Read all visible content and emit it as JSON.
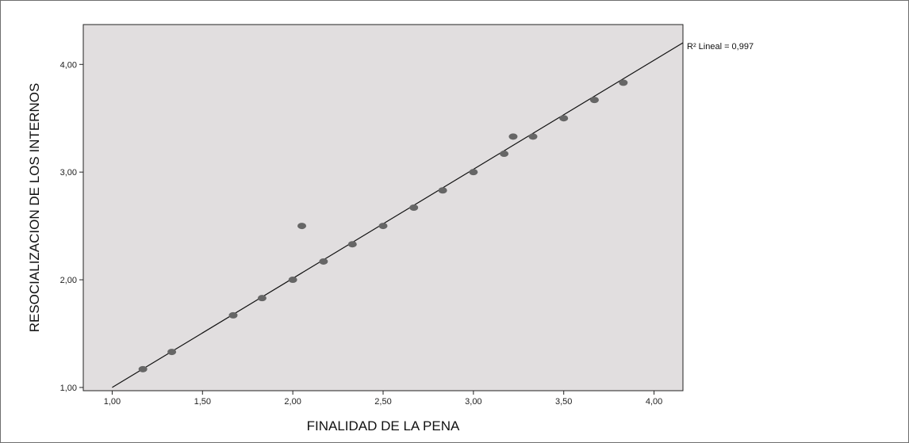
{
  "chart_data": {
    "type": "scatter",
    "xlabel": "FINALIDAD DE LA PENA",
    "ylabel": "RESOCIALIZACION DE LOS INTERNOS",
    "xlim": [
      0.84,
      4.16
    ],
    "ylim": [
      0.97,
      4.37
    ],
    "x_ticks": [
      "1,00",
      "1,50",
      "2,00",
      "2,50",
      "3,00",
      "3,50",
      "4,00"
    ],
    "y_ticks": [
      "1,00",
      "2,00",
      "3,00",
      "4,00"
    ],
    "x_tick_values": [
      1.0,
      1.5,
      2.0,
      2.5,
      3.0,
      3.5,
      4.0
    ],
    "y_tick_values": [
      1.0,
      2.0,
      3.0,
      4.0
    ],
    "points": [
      {
        "x": 1.17,
        "y": 1.17
      },
      {
        "x": 1.33,
        "y": 1.33
      },
      {
        "x": 1.67,
        "y": 1.67
      },
      {
        "x": 1.83,
        "y": 1.83
      },
      {
        "x": 2.0,
        "y": 2.0
      },
      {
        "x": 2.05,
        "y": 2.5
      },
      {
        "x": 2.17,
        "y": 2.17
      },
      {
        "x": 2.33,
        "y": 2.33
      },
      {
        "x": 2.5,
        "y": 2.5
      },
      {
        "x": 2.67,
        "y": 2.67
      },
      {
        "x": 2.83,
        "y": 2.83
      },
      {
        "x": 3.0,
        "y": 3.0
      },
      {
        "x": 3.17,
        "y": 3.17
      },
      {
        "x": 3.22,
        "y": 3.33
      },
      {
        "x": 3.33,
        "y": 3.33
      },
      {
        "x": 3.5,
        "y": 3.5
      },
      {
        "x": 3.67,
        "y": 3.67
      },
      {
        "x": 3.83,
        "y": 3.83
      }
    ],
    "fit_line": {
      "label": "R² Lineal = 0,997",
      "x_start": 1.0,
      "x_end": 4.16,
      "intercept": -0.013,
      "slope": 1.013
    },
    "grid": false,
    "colors": {
      "plot_background": "#e1dedf",
      "point": "#666666",
      "line": "#111111",
      "frame": "#6f6f6f"
    }
  }
}
